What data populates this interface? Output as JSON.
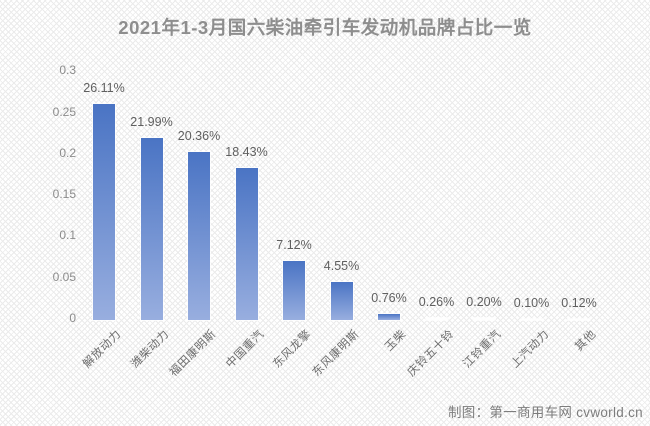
{
  "title": "2021年1-3月国六柴油牵引车发动机品牌占比一览",
  "credit": "制图：第一商用车网 cvworld.cn",
  "chart_data": {
    "type": "bar",
    "title": "2021年1-3月国六柴油牵引车发动机品牌占比一览",
    "xlabel": "",
    "ylabel": "",
    "ylim": [
      0,
      0.3
    ],
    "yticks": [
      0,
      0.05,
      0.1,
      0.15,
      0.2,
      0.25,
      0.3
    ],
    "ytick_labels": [
      "0",
      "0.05",
      "0.1",
      "0.15",
      "0.2",
      "0.25",
      "0.3"
    ],
    "grid": false,
    "legend": false,
    "bars": [
      {
        "category": "解放动力",
        "value": 0.2611,
        "label": "26.11%",
        "fill": "blue"
      },
      {
        "category": "潍柴动力",
        "value": 0.2199,
        "label": "21.99%",
        "fill": "blue"
      },
      {
        "category": "福田康明斯",
        "value": 0.2036,
        "label": "20.36%",
        "fill": "blue"
      },
      {
        "category": "中国重汽",
        "value": 0.1843,
        "label": "18.43%",
        "fill": "blue"
      },
      {
        "category": "东风龙擎",
        "value": 0.0712,
        "label": "7.12%",
        "fill": "blue"
      },
      {
        "category": "东风康明斯",
        "value": 0.0455,
        "label": "4.55%",
        "fill": "blue"
      },
      {
        "category": "玉柴",
        "value": 0.0076,
        "label": "0.76%",
        "fill": "blue"
      },
      {
        "category": "庆铃五十铃",
        "value": 0.0026,
        "label": "0.26%",
        "fill": "white"
      },
      {
        "category": "江铃重汽",
        "value": 0.002,
        "label": "0.20%",
        "fill": "white"
      },
      {
        "category": "上汽动力",
        "value": 0.001,
        "label": "0.10%",
        "fill": "white"
      },
      {
        "category": "其他",
        "value": 0.0012,
        "label": "0.12%",
        "fill": "white"
      }
    ],
    "colors": {
      "bar_gradient_top": "#4A74C4",
      "bar_gradient_bottom": "#98AEDF",
      "white_bar": "#FFFFFF",
      "title_text": "#8E8E8E",
      "axis_text": "#8C8C8C",
      "value_label_text": "#5F5F5F",
      "category_text": "#6E6E6E",
      "credit_text": "#7D7D7D"
    }
  }
}
